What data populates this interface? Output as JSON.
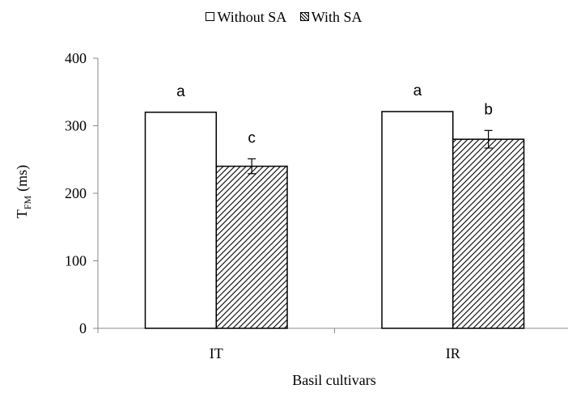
{
  "chart_data": {
    "type": "bar",
    "categories": [
      "IT",
      "IR"
    ],
    "series": [
      {
        "name": "Without SA",
        "values": [
          320,
          321
        ],
        "errors": [
          0,
          0
        ],
        "letters": [
          "a",
          "a"
        ],
        "pattern": "plain"
      },
      {
        "name": "With SA",
        "values": [
          240,
          280
        ],
        "errors": [
          11,
          13
        ],
        "letters": [
          "c",
          "b"
        ],
        "pattern": "hatch"
      }
    ],
    "xlabel": "Basil cultivars",
    "ylabel_main": "T",
    "ylabel_sub": "FM",
    "ylabel_unit": "(ms)",
    "ylim": [
      0,
      400
    ],
    "yticks": [
      0,
      100,
      200,
      300,
      400
    ],
    "grid": false,
    "legend_position": "top-center"
  }
}
